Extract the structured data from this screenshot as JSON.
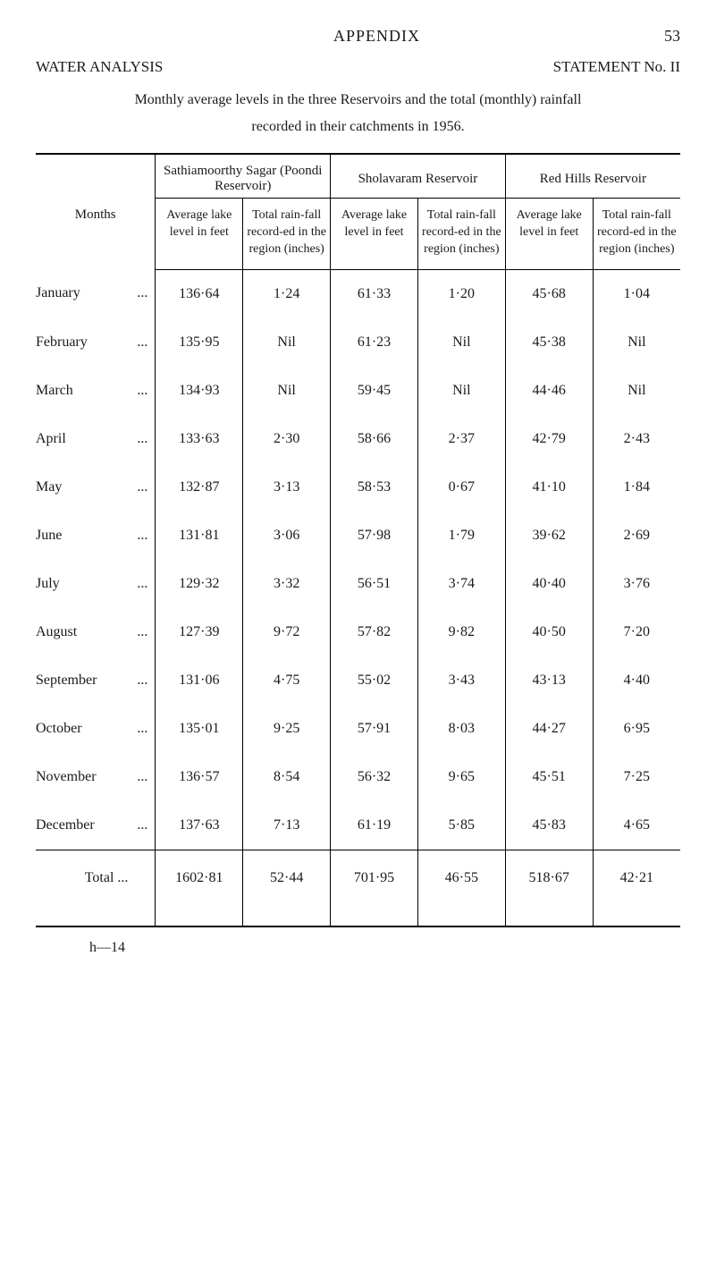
{
  "page": {
    "appendix": "APPENDIX",
    "pageNumber": "53",
    "leftHeading": "WATER ANALYSIS",
    "rightHeading": "STATEMENT No. II",
    "introLine": "Monthly average levels in the three Reservoirs and the total (monthly) rainfall",
    "subLine": "recorded in their catchments in 1956.",
    "footer": "h—14"
  },
  "table": {
    "monthsLabel": "Months",
    "groupHeaders": [
      "Sathiamoorthy Sagar (Poondi Reservoir)",
      "Sholavaram Reservoir",
      "Red Hills Reservoir"
    ],
    "subHeaders": {
      "avg": "Average lake level in feet",
      "rain": "Total rain-fall record-ed in the region (inches)"
    },
    "rows": [
      {
        "month": "January",
        "v": [
          "136·64",
          "1·24",
          "61·33",
          "1·20",
          "45·68",
          "1·04"
        ]
      },
      {
        "month": "February",
        "v": [
          "135·95",
          "Nil",
          "61·23",
          "Nil",
          "45·38",
          "Nil"
        ]
      },
      {
        "month": "March",
        "v": [
          "134·93",
          "Nil",
          "59·45",
          "Nil",
          "44·46",
          "Nil"
        ]
      },
      {
        "month": "April",
        "v": [
          "133·63",
          "2·30",
          "58·66",
          "2·37",
          "42·79",
          "2·43"
        ]
      },
      {
        "month": "May",
        "v": [
          "132·87",
          "3·13",
          "58·53",
          "0·67",
          "41·10",
          "1·84"
        ]
      },
      {
        "month": "June",
        "v": [
          "131·81",
          "3·06",
          "57·98",
          "1·79",
          "39·62",
          "2·69"
        ]
      },
      {
        "month": "July",
        "v": [
          "129·32",
          "3·32",
          "56·51",
          "3·74",
          "40·40",
          "3·76"
        ]
      },
      {
        "month": "August",
        "v": [
          "127·39",
          "9·72",
          "57·82",
          "9·82",
          "40·50",
          "7·20"
        ]
      },
      {
        "month": "September",
        "v": [
          "131·06",
          "4·75",
          "55·02",
          "3·43",
          "43·13",
          "4·40"
        ]
      },
      {
        "month": "October",
        "v": [
          "135·01",
          "9·25",
          "57·91",
          "8·03",
          "44·27",
          "6·95"
        ]
      },
      {
        "month": "November",
        "v": [
          "136·57",
          "8·54",
          "56·32",
          "9·65",
          "45·51",
          "7·25"
        ]
      },
      {
        "month": "December",
        "v": [
          "137·63",
          "7·13",
          "61·19",
          "5·85",
          "45·83",
          "4·65"
        ]
      }
    ],
    "totalLabel": "Total   ...",
    "totalValues": [
      "1602·81",
      "52·44",
      "701·95",
      "46·55",
      "518·67",
      "42·21"
    ],
    "dots": "..."
  }
}
